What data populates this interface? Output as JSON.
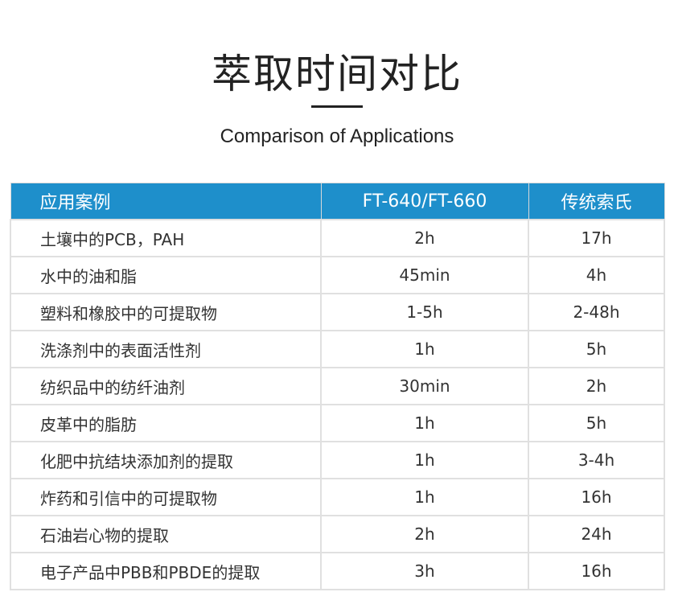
{
  "title": "萃取时间对比",
  "subtitle": "Comparison of Applications",
  "table": {
    "headers": [
      "应用案例",
      "FT-640/FT-660",
      "传统索氏"
    ],
    "header_color": "#1e8fcb",
    "rows": [
      [
        "土壤中的PCB，PAH",
        "2h",
        "17h"
      ],
      [
        "水中的油和脂",
        "45min",
        "4h"
      ],
      [
        "塑料和橡胶中的可提取物",
        "1-5h",
        "2-48h"
      ],
      [
        "洗涤剂中的表面活性剂",
        "1h",
        "5h"
      ],
      [
        "纺织品中的纺纤油剂",
        "30min",
        "2h"
      ],
      [
        "皮革中的脂肪",
        "1h",
        "5h"
      ],
      [
        "化肥中抗结块添加剂的提取",
        "1h",
        "3-4h"
      ],
      [
        "炸药和引信中的可提取物",
        "1h",
        "16h"
      ],
      [
        "石油岩心物的提取",
        "2h",
        "24h"
      ],
      [
        "电子产品中PBB和PBDE的提取",
        "3h",
        "16h"
      ]
    ]
  }
}
